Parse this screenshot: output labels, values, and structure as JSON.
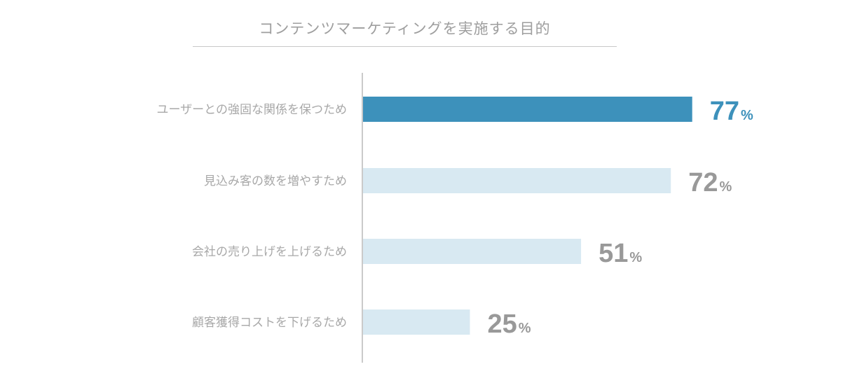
{
  "chart_data": {
    "type": "bar",
    "orientation": "horizontal",
    "title": "コンテンツマーケティングを実施する目的",
    "categories": [
      "ユーザーとの強固な関係を保つため",
      "見込み客の数を増やすため",
      "会社の売り上げを上げるため",
      "顧客獲得コストを下げるため"
    ],
    "values": [
      77,
      72,
      51,
      25
    ],
    "unit": "%",
    "xlim": [
      0,
      100
    ],
    "grid": false,
    "legend": "none",
    "highlight_index": 0
  },
  "colors": {
    "highlight_bar": "#3d91bb",
    "normal_bar": "#d8e9f2",
    "highlight_value": "#3d91bb",
    "normal_value": "#999999",
    "axis": "#b8b8b8"
  }
}
